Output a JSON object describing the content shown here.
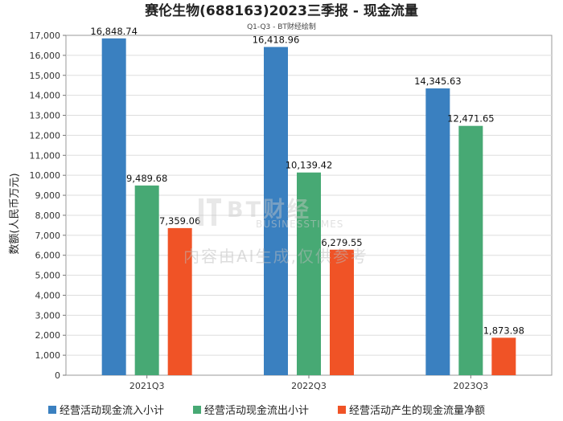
{
  "chart_data": {
    "type": "bar",
    "title": "赛伦生物(688163)2023三季报 - 现金流量",
    "subtitle": "Q1-Q3 - BT财经绘制",
    "ylabel": "数额(人民币万元)",
    "xlabel": "",
    "ylim": [
      0,
      17000
    ],
    "ytick_step": 1000,
    "grid": true,
    "legend_position": "bottom-left",
    "categories": [
      "2021Q3",
      "2022Q3",
      "2023Q3"
    ],
    "series": [
      {
        "name": "经营活动现金流入小计",
        "color": "#3a80c0",
        "values": [
          16848.74,
          16418.96,
          14345.63
        ],
        "labels": [
          "16,848.74",
          "16,418.96",
          "14,345.63"
        ]
      },
      {
        "name": "经营活动现金流出小计",
        "color": "#47a974",
        "values": [
          9489.68,
          10139.42,
          12471.65
        ],
        "labels": [
          "9,489.68",
          "10,139.42",
          "12,471.65"
        ]
      },
      {
        "name": "经营活动产生的现金流量净额",
        "color": "#f05326",
        "values": [
          7359.06,
          6279.55,
          1873.98
        ],
        "labels": [
          "7,359.06",
          "6,279.55",
          "1,873.98"
        ]
      }
    ]
  },
  "watermark": {
    "logo": "BT财经",
    "tagline": "BUSINESSTIMES",
    "notice": "内容由AI生成,仅供参考"
  }
}
